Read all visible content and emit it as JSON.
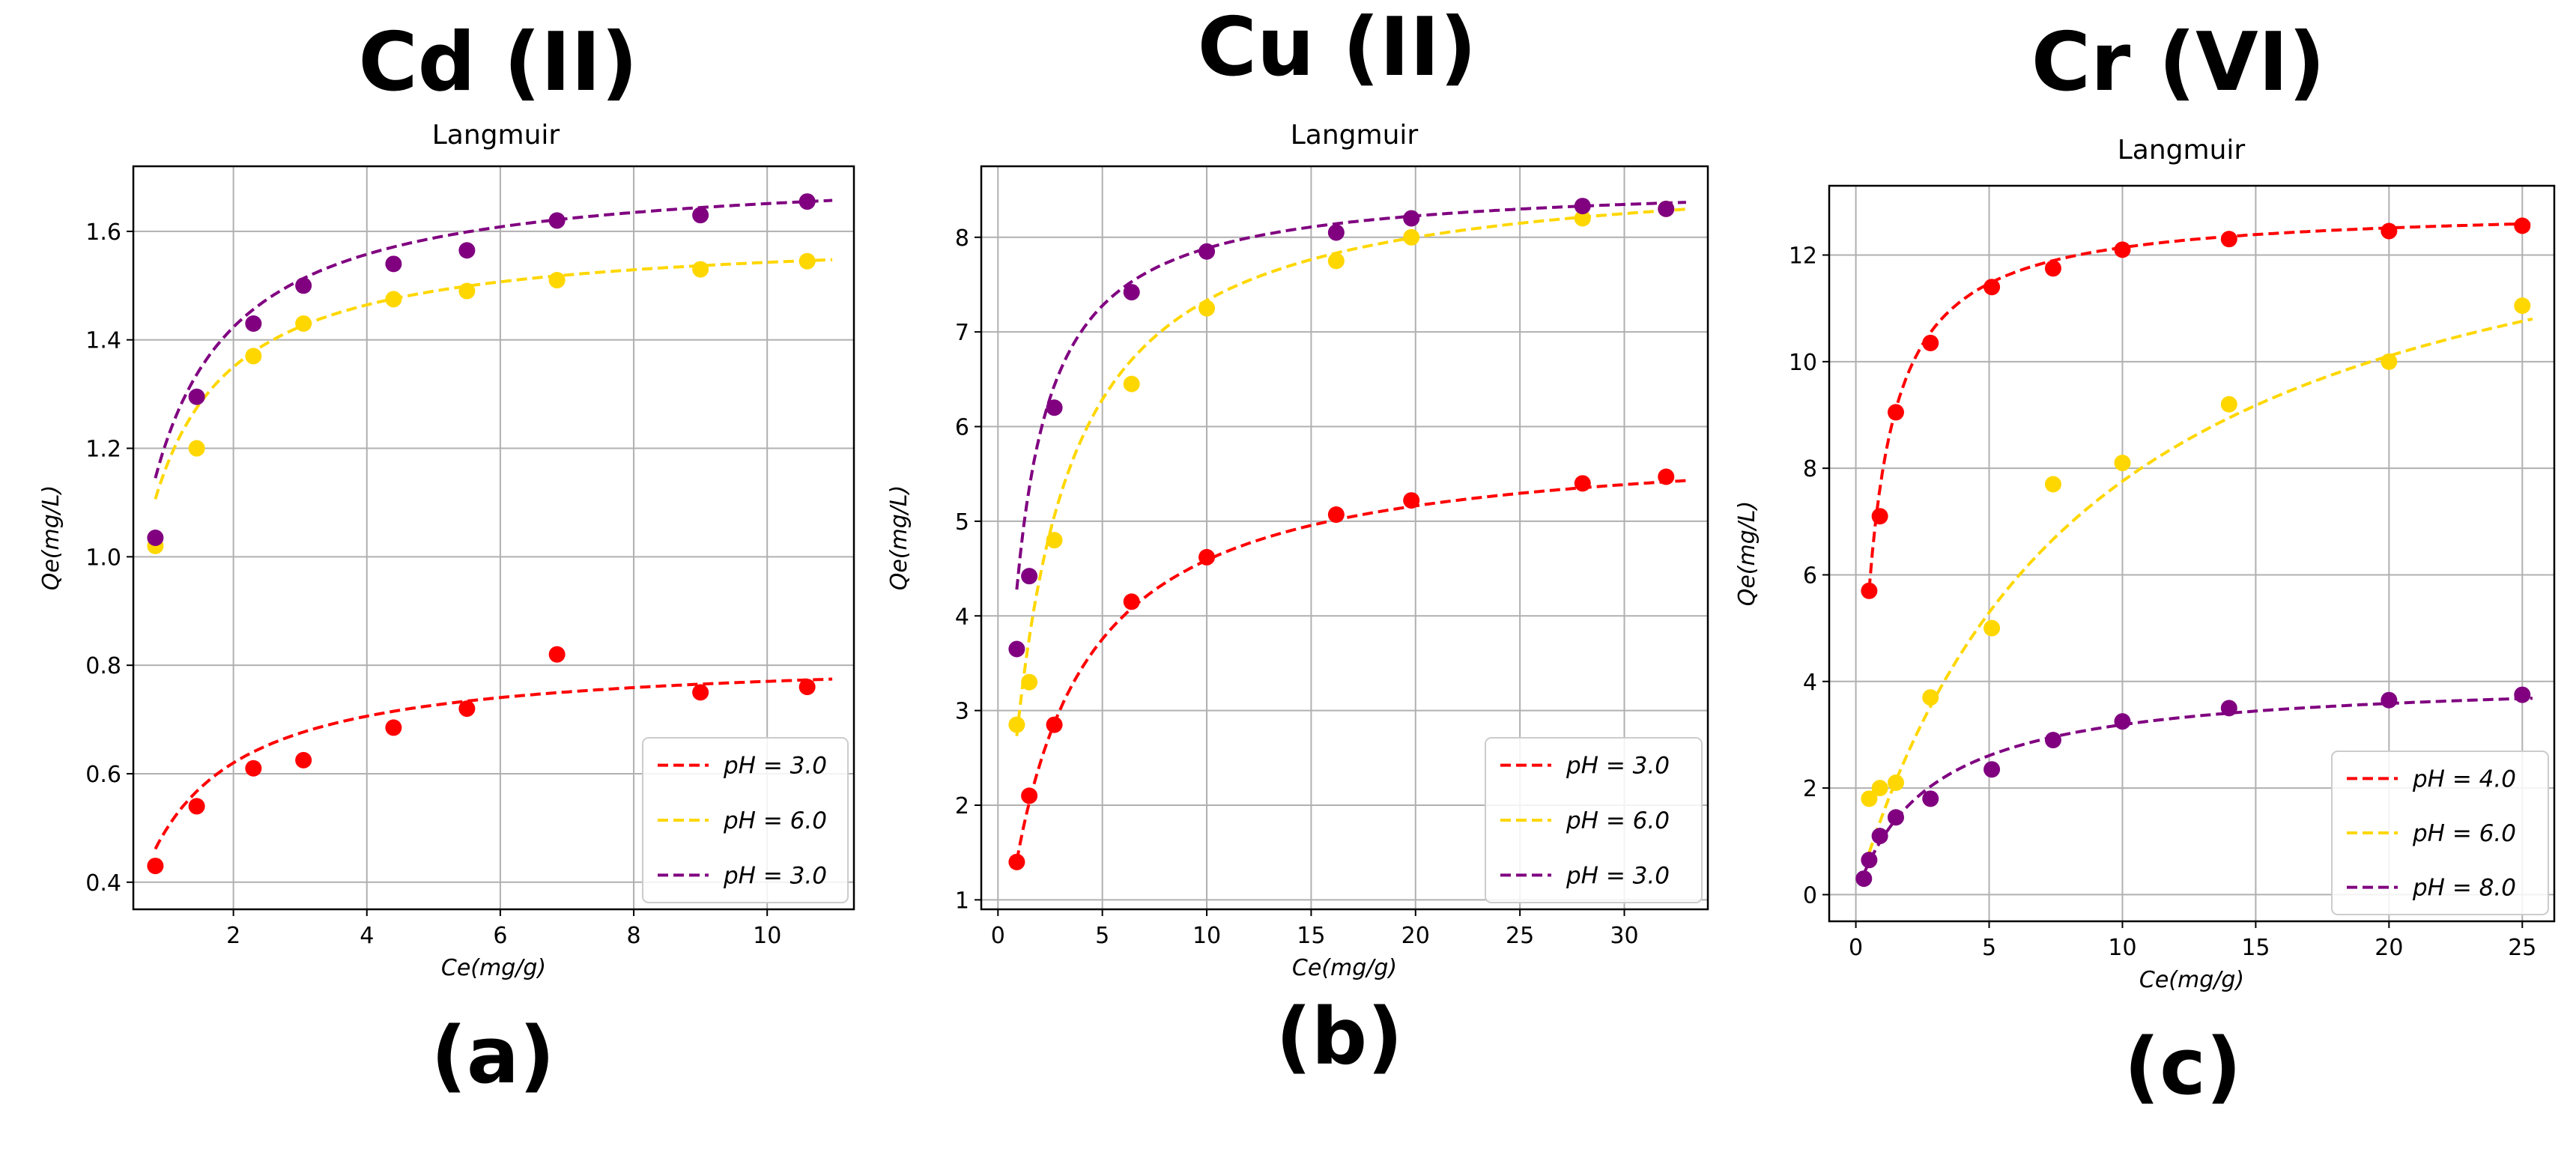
{
  "chart_data": [
    {
      "type": "line",
      "metal": "Cd (II)",
      "panel": "(a)",
      "title": "Langmuir",
      "xlabel": "Ce(mg/g)",
      "ylabel": "Qe(mg/L)",
      "xlim": [
        0.5,
        11.3
      ],
      "ylim": [
        0.35,
        1.72
      ],
      "xticks": [
        2,
        4,
        6,
        8,
        10
      ],
      "yticks": [
        0.4,
        0.6,
        0.8,
        1.0,
        1.2,
        1.4,
        1.6
      ],
      "legend_position": "lower-right",
      "series": [
        {
          "name": "pH = 3.0",
          "color": "#ff0000",
          "fit": {
            "qmax": 0.82,
            "kl": 1.55
          },
          "x": [
            0.83,
            1.45,
            2.3,
            3.05,
            4.4,
            5.5,
            6.85,
            9.0,
            10.6
          ],
          "y": [
            0.43,
            0.54,
            0.61,
            0.625,
            0.685,
            0.72,
            0.82,
            0.75,
            0.76
          ]
        },
        {
          "name": "pH = 6.0",
          "color": "#ffd700",
          "fit": {
            "qmax": 1.6,
            "kl": 2.7
          },
          "x": [
            0.83,
            1.45,
            2.3,
            3.05,
            4.4,
            5.5,
            6.85,
            9.0,
            10.6
          ],
          "y": [
            1.02,
            1.2,
            1.37,
            1.43,
            1.475,
            1.49,
            1.51,
            1.53,
            1.545
          ]
        },
        {
          "name": "pH = 3.0",
          "color": "#800080",
          "fit": {
            "qmax": 1.72,
            "kl": 2.4
          },
          "x": [
            0.83,
            1.45,
            2.3,
            3.05,
            4.4,
            5.5,
            6.85,
            9.0,
            10.6
          ],
          "y": [
            1.035,
            1.295,
            1.43,
            1.5,
            1.54,
            1.565,
            1.62,
            1.63,
            1.655
          ]
        }
      ]
    },
    {
      "type": "line",
      "metal": "Cu (II)",
      "panel": "(b)",
      "title": "Langmuir",
      "xlabel": "Ce(mg/g)",
      "ylabel": "Qe(mg/L)",
      "xlim": [
        -0.8,
        34.0
      ],
      "ylim": [
        0.9,
        8.75
      ],
      "xticks": [
        0,
        5,
        10,
        15,
        20,
        25,
        30
      ],
      "yticks": [
        1,
        2,
        3,
        4,
        5,
        6,
        7,
        8
      ],
      "legend_position": "lower-right",
      "series": [
        {
          "name": "pH = 3.0",
          "color": "#ff0000",
          "fit": {
            "qmax": 5.9,
            "kl": 0.35
          },
          "x": [
            0.9,
            1.5,
            2.7,
            6.4,
            10.0,
            16.2,
            19.8,
            28.0,
            32.0
          ],
          "y": [
            1.4,
            2.1,
            2.85,
            4.15,
            4.62,
            5.07,
            5.22,
            5.4,
            5.47
          ]
        },
        {
          "name": "pH = 6.0",
          "color": "#ffd700",
          "fit": {
            "qmax": 8.8,
            "kl": 0.5
          },
          "x": [
            0.9,
            1.5,
            2.7,
            6.4,
            10.0,
            16.2,
            19.8,
            28.0,
            32.0
          ],
          "y": [
            2.85,
            3.3,
            4.8,
            6.45,
            7.25,
            7.75,
            8.0,
            8.2,
            8.3
          ]
        },
        {
          "name": "pH = 3.0",
          "color": "#800080",
          "fit": {
            "qmax": 8.6,
            "kl": 1.1
          },
          "x": [
            0.9,
            1.5,
            2.7,
            6.4,
            10.0,
            16.2,
            19.8,
            28.0,
            32.0
          ],
          "y": [
            3.65,
            4.42,
            6.2,
            7.42,
            7.85,
            8.05,
            8.2,
            8.33,
            8.3
          ]
        }
      ]
    },
    {
      "type": "line",
      "metal": "Cr (VI)",
      "panel": "(c)",
      "title": "Langmuir",
      "xlabel": "Ce(mg/g)",
      "ylabel": "Qe(mg/L)",
      "xlim": [
        -1.0,
        26.2
      ],
      "ylim": [
        -0.5,
        13.3
      ],
      "xticks": [
        0,
        5,
        10,
        15,
        20,
        25
      ],
      "yticks": [
        0,
        2,
        4,
        6,
        8,
        10,
        12
      ],
      "legend_position": "lower-right",
      "series": [
        {
          "name": "pH = 4.0",
          "color": "#ff0000",
          "fit": {
            "qmax": 12.9,
            "kl": 1.6
          },
          "x": [
            0.5,
            0.9,
            1.5,
            2.8,
            5.1,
            7.4,
            10.0,
            14.0,
            20.0,
            25.0
          ],
          "y": [
            5.7,
            7.1,
            9.05,
            10.35,
            11.4,
            11.75,
            12.1,
            12.3,
            12.45,
            12.55
          ]
        },
        {
          "name": "pH = 6.0",
          "color": "#ffd700",
          "fit": {
            "qmax": 14.5,
            "kl": 0.115
          },
          "x": [
            0.5,
            0.9,
            1.5,
            2.8,
            5.1,
            7.4,
            10.0,
            14.0,
            20.0,
            25.0
          ],
          "y": [
            1.8,
            2.0,
            2.1,
            3.7,
            5.0,
            7.7,
            8.1,
            9.2,
            10.0,
            11.05
          ]
        },
        {
          "name": "pH = 8.0",
          "color": "#800080",
          "fit": {
            "qmax": 4.1,
            "kl": 0.35
          },
          "x": [
            0.3,
            0.5,
            0.9,
            1.5,
            2.8,
            5.1,
            7.4,
            10.0,
            14.0,
            20.0,
            25.0
          ],
          "y": [
            0.3,
            0.65,
            1.1,
            1.45,
            1.8,
            2.35,
            2.9,
            3.25,
            3.5,
            3.65,
            3.75
          ]
        }
      ]
    }
  ]
}
